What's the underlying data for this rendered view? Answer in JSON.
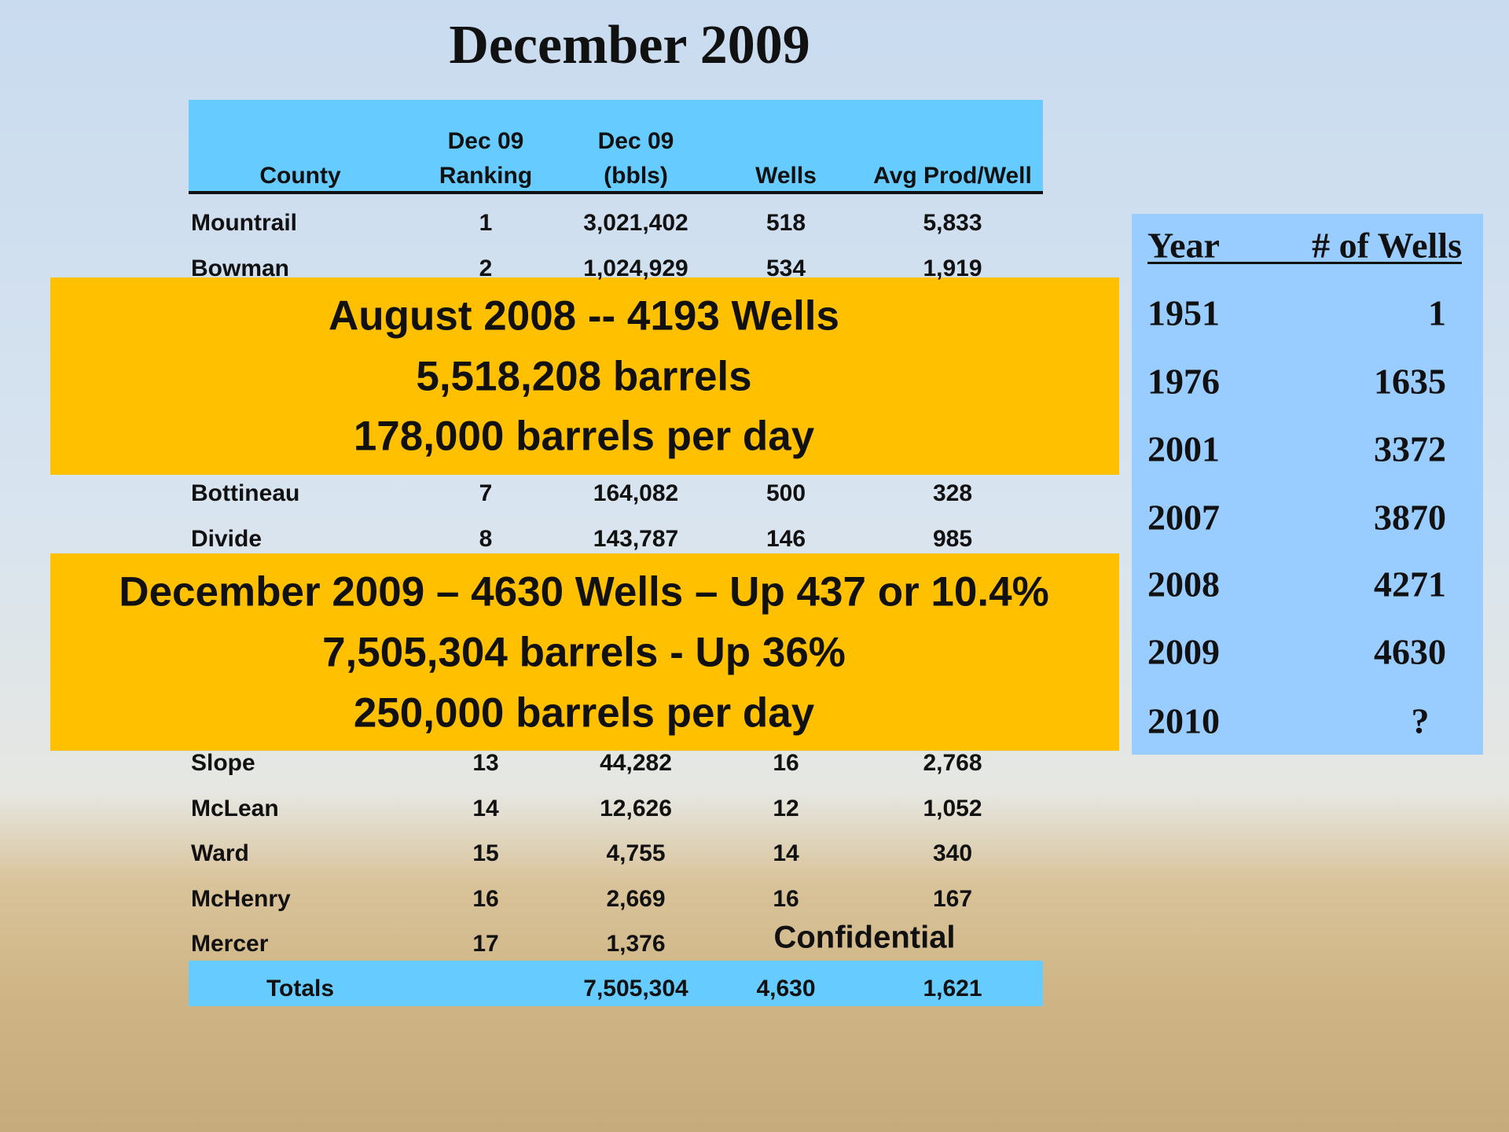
{
  "title": "December  2009",
  "county_table": {
    "columns": [
      [
        "County"
      ],
      [
        "Dec 09",
        "Ranking"
      ],
      [
        "Dec 09",
        "(bbls)"
      ],
      [
        "Wells"
      ],
      [
        "Avg Prod/Well"
      ]
    ],
    "rows": [
      [
        "Mountrail",
        1,
        "3,021,402",
        518,
        "5,833"
      ],
      [
        "Bowman",
        2,
        "1,024,929",
        534,
        "1,919"
      ],
      [
        "Bottineau",
        7,
        "164,082",
        500,
        328
      ],
      [
        "Divide",
        8,
        "143,787",
        146,
        985
      ],
      [
        "Slope",
        13,
        "44,282",
        16,
        "2,768"
      ],
      [
        "McLean",
        14,
        "12,626",
        12,
        "1,052"
      ],
      [
        "Ward",
        15,
        "4,755",
        14,
        340
      ],
      [
        "McHenry",
        16,
        "2,669",
        16,
        167
      ],
      [
        "Mercer",
        17,
        "1,376"
      ]
    ],
    "confidential": "Confidential",
    "totals": {
      "label": "Totals",
      "bbls": "7,505,304",
      "wells": "4,630",
      "avg": "1,621"
    }
  },
  "callouts": [
    {
      "lines": [
        "August 2008 -- 4193 Wells",
        "5,518,208 barrels",
        "178,000 barrels per day"
      ]
    },
    {
      "lines": [
        "December  2009 – 4630 Wells – Up  437 or 10.4%",
        "7,505,304 barrels  - Up 36%",
        "250,000 barrels per day"
      ]
    }
  ],
  "wells_by_year": {
    "headers": [
      "Year",
      "# of Wells"
    ],
    "rows": [
      [
        1951,
        1
      ],
      [
        1976,
        1635
      ],
      [
        2001,
        3372
      ],
      [
        2007,
        3870
      ],
      [
        2008,
        4271
      ],
      [
        2009,
        4630
      ],
      [
        2010,
        "?"
      ]
    ]
  }
}
